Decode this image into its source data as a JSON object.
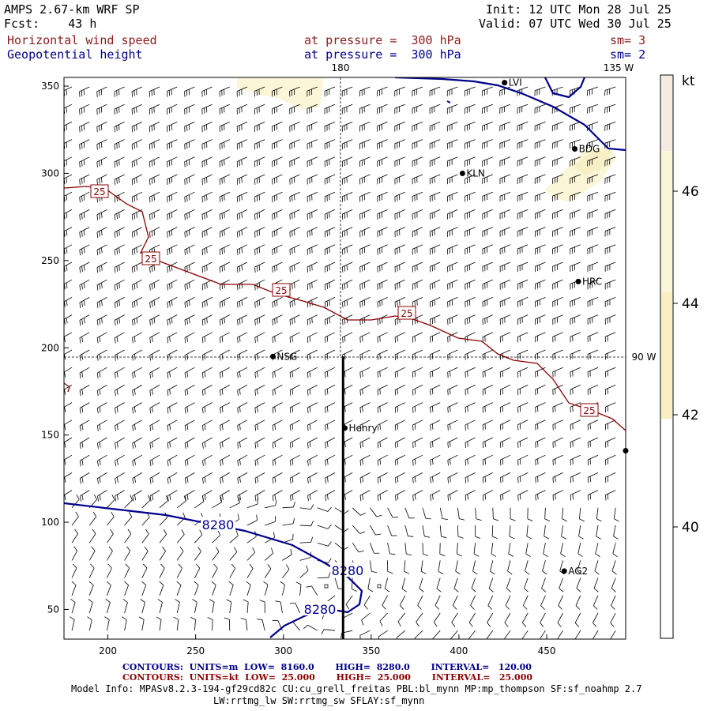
{
  "header": {
    "model": "AMPS 2.67-km WRF SP",
    "fcst_label": "Fcst:",
    "fcst_value": "43 h",
    "init_label": "Init:",
    "init_value": "12 UTC Mon 28 Jul 25",
    "valid_label": "Valid:",
    "valid_value": "07 UTC Wed 30 Jul 25",
    "field1_name": "Horizontal wind speed",
    "field1_level_label": "at pressure =",
    "field1_level": "300 hPa",
    "field1_sm": "sm= 3",
    "field2_name": "Geopotential height",
    "field2_level_label": "at pressure =",
    "field2_level": "300 hPa",
    "field2_sm": "sm= 2"
  },
  "map_labels": {
    "top_180": "180",
    "top_135w": "135 W",
    "right_90w": "90 W"
  },
  "stations": [
    {
      "name": "LVI",
      "x": 426,
      "y": 352
    },
    {
      "name": "BDG",
      "x": 466,
      "y": 314
    },
    {
      "name": "KLN",
      "x": 402,
      "y": 300
    },
    {
      "name": "HRC",
      "x": 468,
      "y": 238
    },
    {
      "name": "NSG",
      "x": 294,
      "y": 195
    },
    {
      "name": "Henry",
      "x": 335,
      "y": 154
    },
    {
      "name": "AG2",
      "x": 460,
      "y": 72
    },
    {
      "name": "",
      "x": 495,
      "y": 141
    }
  ],
  "colorbar": {
    "unit": "kt",
    "labels": [
      "46",
      "44",
      "42",
      "40"
    ],
    "colors": {
      "low": "#ffffff",
      "mid": "#fbf6d8",
      "high": "#fbeec0",
      "top": "#f5ebe0"
    }
  },
  "footer": {
    "c1_label": "CONTOURS:",
    "c1_units": "UNITS=m",
    "c1_low_label": "LOW=",
    "c1_low": "8160.0",
    "c1_high_label": "HIGH=",
    "c1_high": "8280.0",
    "c1_int_label": "INTERVAL=",
    "c1_int": "120.00",
    "c2_label": "CONTOURS:",
    "c2_units": "UNITS=kt",
    "c2_low_label": "LOW=",
    "c2_low": "25.000",
    "c2_high_label": "HIGH=",
    "c2_high": "25.000",
    "c2_int_label": "INTERVAL=",
    "c2_int": "25.000",
    "model_info_1": "Model Info: MPASv8.2.3-194-gf29cd82c CU:cu_grell_freitas PBL:bl_mynn MP:mp_thompson SF:sf_noahmp 2.7",
    "model_info_2": "LW:rrtmg_lw SW:rrtmg_sw SFLAY:sf_mynn"
  },
  "chart_data": {
    "type": "heatmap",
    "xlabel": "",
    "ylabel": "",
    "xlim": [
      175,
      495
    ],
    "ylim": [
      33,
      355
    ],
    "x_ticks": [
      200,
      250,
      300,
      350,
      400,
      450
    ],
    "y_ticks": [
      50,
      100,
      150,
      200,
      250,
      300,
      350
    ],
    "height_contour_label": "8280",
    "speed_contour_label": "25",
    "cross_section": {
      "x": 334,
      "y_start": 33,
      "y_end": 195
    }
  },
  "colors": {
    "height_contour": "#00008b",
    "speed_contour": "#8b0000",
    "barb": "#000000"
  }
}
